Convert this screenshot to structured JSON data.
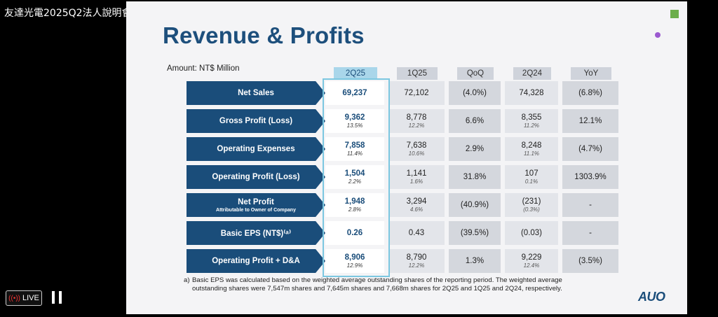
{
  "stream": {
    "title": "友達光電2025Q2法人說明會"
  },
  "slide": {
    "title": "Revenue & Profits",
    "amount_label": "Amount: NT$ Million",
    "columns": [
      "2Q25",
      "1Q25",
      "QoQ",
      "2Q24",
      "YoY"
    ],
    "rows": [
      {
        "label": "Net Sales",
        "sublabel": "",
        "cells": [
          [
            "69,237",
            ""
          ],
          [
            "72,102",
            ""
          ],
          [
            "(4.0%)",
            ""
          ],
          [
            "74,328",
            ""
          ],
          [
            "(6.8%)",
            ""
          ]
        ]
      },
      {
        "label": "Gross Profit (Loss)",
        "sublabel": "",
        "cells": [
          [
            "9,362",
            "13.5%"
          ],
          [
            "8,778",
            "12.2%"
          ],
          [
            "6.6%",
            ""
          ],
          [
            "8,355",
            "11.2%"
          ],
          [
            "12.1%",
            ""
          ]
        ]
      },
      {
        "label": "Operating Expenses",
        "sublabel": "",
        "cells": [
          [
            "7,858",
            "11.4%"
          ],
          [
            "7,638",
            "10.6%"
          ],
          [
            "2.9%",
            ""
          ],
          [
            "8,248",
            "11.1%"
          ],
          [
            "(4.7%)",
            ""
          ]
        ]
      },
      {
        "label": "Operating Profit (Loss)",
        "sublabel": "",
        "cells": [
          [
            "1,504",
            "2.2%"
          ],
          [
            "1,141",
            "1.6%"
          ],
          [
            "31.8%",
            ""
          ],
          [
            "107",
            "0.1%"
          ],
          [
            "1303.9%",
            ""
          ]
        ]
      },
      {
        "label": "Net Profit",
        "sublabel": "Attributable to Owner of Company",
        "cells": [
          [
            "1,948",
            "2.8%"
          ],
          [
            "3,294",
            "4.6%"
          ],
          [
            "(40.9%)",
            ""
          ],
          [
            "(231)",
            "(0.3%)"
          ],
          [
            "-",
            ""
          ]
        ]
      },
      {
        "label": "Basic EPS (NT$)⁽ᵃ⁾",
        "sublabel": "",
        "cells": [
          [
            "0.26",
            ""
          ],
          [
            "0.43",
            ""
          ],
          [
            "(39.5%)",
            ""
          ],
          [
            "(0.03)",
            ""
          ],
          [
            "-",
            ""
          ]
        ]
      },
      {
        "label": "Operating Profit + D&A",
        "sublabel": "",
        "cells": [
          [
            "8,906",
            "12.9%"
          ],
          [
            "8,790",
            "12.2%"
          ],
          [
            "1.3%",
            ""
          ],
          [
            "9,229",
            "12.4%"
          ],
          [
            "(3.5%)",
            ""
          ]
        ]
      }
    ],
    "footnote_mark": "a)",
    "footnote": "Basic EPS was calculated based on the weighted average outstanding shares of the reporting period. The weighted average outstanding shares were 7,547m shares and 7,645m shares and 7,668m shares for 2Q25 and 1Q25 and 2Q24, respectively.",
    "logo": "AUO"
  },
  "controls": {
    "live_label": "LIVE",
    "live_icon": "broadcast-icon",
    "pause_icon": "pause-icon"
  },
  "colors": {
    "primary": "#1a4d7a",
    "highlight": "#7cc7e0",
    "accent_green": "#6cae4c",
    "accent_purple": "#9b59d0"
  }
}
